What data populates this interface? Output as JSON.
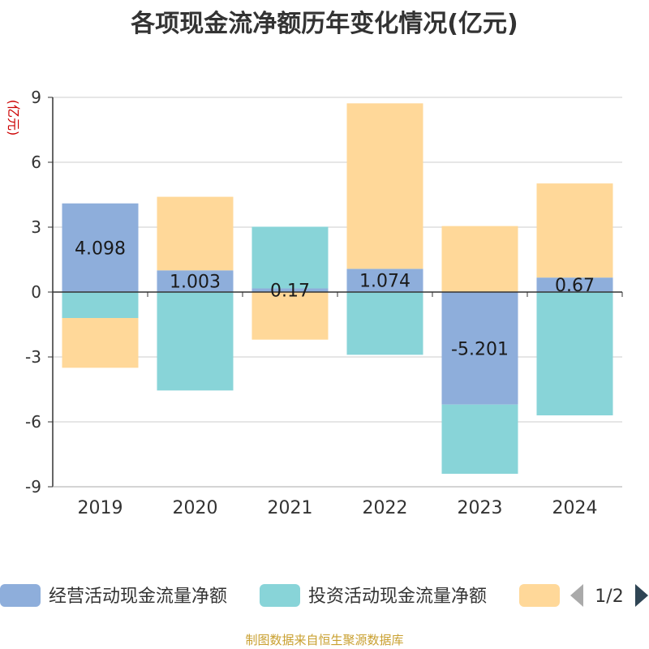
{
  "title": "各项现金流净额历年变化情况(亿元)",
  "source": "制图数据来自恒生聚源数据库",
  "chart_data": {
    "type": "bar",
    "stacked": true,
    "title": "各项现金流净额历年变化情况(亿元)",
    "ylabel": "(亿元)",
    "ylim": [
      -9,
      9
    ],
    "yticks": [
      9,
      6,
      3,
      0,
      -3,
      -6,
      -9
    ],
    "categories": [
      "2019",
      "2020",
      "2021",
      "2022",
      "2023",
      "2024"
    ],
    "series": [
      {
        "name": "经营活动现金流量净额",
        "color": "#8eaedb",
        "values": [
          4.098,
          1.003,
          0.17,
          1.074,
          -5.201,
          0.67
        ],
        "labels": [
          "4.098",
          "1.003",
          "0.17",
          "1.074",
          "-5.201",
          "0.67"
        ]
      },
      {
        "name": "投资活动现金流量净额",
        "color": "#88d4d8",
        "values": [
          -1.2,
          -4.55,
          2.85,
          -2.9,
          -3.2,
          -5.7
        ]
      },
      {
        "color": "#ffd899",
        "values": [
          -2.3,
          3.4,
          -2.2,
          7.65,
          3.05,
          4.35
        ]
      }
    ],
    "legend": {
      "position": "bottom",
      "page": "1/2"
    }
  }
}
